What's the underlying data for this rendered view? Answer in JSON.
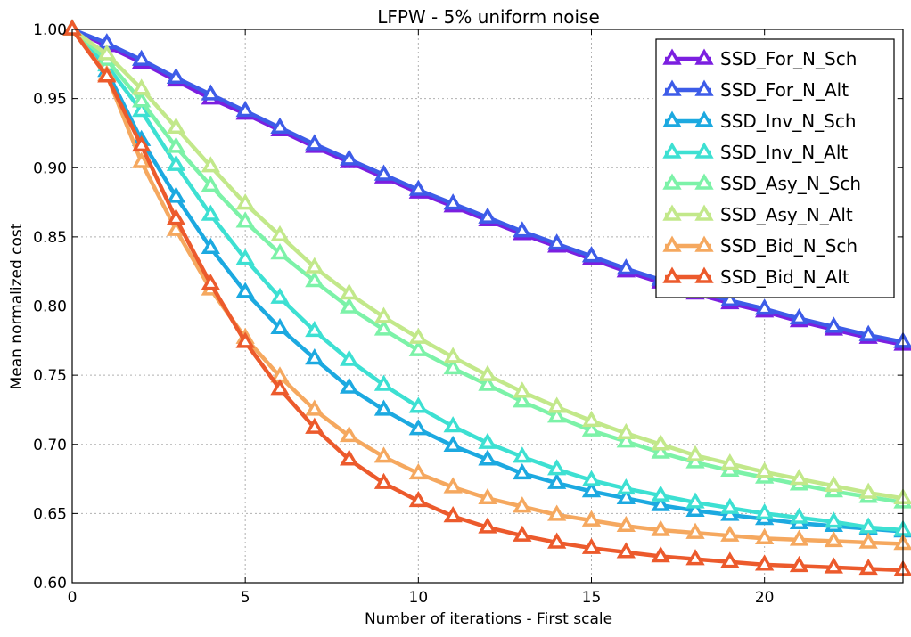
{
  "chart_data": {
    "type": "line",
    "title": "LFPW - 5% uniform noise",
    "xlabel": "Number of iterations - First scale",
    "ylabel": "Mean normalized cost",
    "xlim": [
      0,
      24
    ],
    "ylim": [
      0.6,
      1.0
    ],
    "xticks": [
      0,
      5,
      10,
      15,
      20
    ],
    "xtick_labels": [
      "0",
      "5",
      "10",
      "15",
      "20"
    ],
    "yticks": [
      0.6,
      0.65,
      0.7,
      0.75,
      0.8,
      0.85,
      0.9,
      0.95,
      1.0
    ],
    "ytick_labels": [
      "0.60",
      "0.65",
      "0.70",
      "0.75",
      "0.80",
      "0.85",
      "0.90",
      "0.95",
      "1.00"
    ],
    "grid": true,
    "legend_position": "top-right",
    "marker": "triangle",
    "x": [
      0,
      1,
      2,
      3,
      4,
      5,
      6,
      7,
      8,
      9,
      10,
      11,
      12,
      13,
      14,
      15,
      16,
      17,
      18,
      19,
      20,
      21,
      22,
      23,
      24
    ],
    "series": [
      {
        "name": "SSD_For_N_Sch",
        "color": "#7b1fe0",
        "values": [
          1.0,
          0.988,
          0.976,
          0.963,
          0.95,
          0.939,
          0.927,
          0.915,
          0.904,
          0.893,
          0.882,
          0.872,
          0.862,
          0.852,
          0.843,
          0.834,
          0.825,
          0.817,
          0.809,
          0.802,
          0.796,
          0.789,
          0.783,
          0.777,
          0.772
        ]
      },
      {
        "name": "SSD_For_N_Alt",
        "color": "#3d5ce8",
        "values": [
          1.0,
          0.99,
          0.978,
          0.965,
          0.953,
          0.941,
          0.929,
          0.917,
          0.906,
          0.895,
          0.884,
          0.874,
          0.864,
          0.854,
          0.845,
          0.836,
          0.827,
          0.819,
          0.811,
          0.804,
          0.798,
          0.791,
          0.785,
          0.779,
          0.774
        ]
      },
      {
        "name": "SSD_Inv_N_Sch",
        "color": "#1ca9e0",
        "values": [
          1.0,
          0.97,
          0.92,
          0.879,
          0.842,
          0.81,
          0.784,
          0.762,
          0.741,
          0.725,
          0.711,
          0.699,
          0.689,
          0.679,
          0.672,
          0.666,
          0.661,
          0.656,
          0.652,
          0.649,
          0.646,
          0.643,
          0.641,
          0.639,
          0.637
        ]
      },
      {
        "name": "SSD_Inv_N_Alt",
        "color": "#3de0d2",
        "values": [
          1.0,
          0.974,
          0.941,
          0.902,
          0.866,
          0.834,
          0.806,
          0.782,
          0.761,
          0.743,
          0.727,
          0.713,
          0.701,
          0.691,
          0.682,
          0.674,
          0.668,
          0.663,
          0.658,
          0.654,
          0.65,
          0.647,
          0.644,
          0.64,
          0.638
        ]
      },
      {
        "name": "SSD_Asy_N_Sch",
        "color": "#7cf2a8",
        "values": [
          1.0,
          0.978,
          0.948,
          0.915,
          0.887,
          0.861,
          0.838,
          0.818,
          0.799,
          0.783,
          0.768,
          0.755,
          0.743,
          0.731,
          0.72,
          0.71,
          0.702,
          0.694,
          0.687,
          0.681,
          0.676,
          0.671,
          0.666,
          0.662,
          0.658
        ]
      },
      {
        "name": "SSD_Asy_N_Alt",
        "color": "#c2e88a",
        "values": [
          1.0,
          0.982,
          0.957,
          0.929,
          0.901,
          0.874,
          0.851,
          0.828,
          0.809,
          0.792,
          0.777,
          0.763,
          0.75,
          0.738,
          0.727,
          0.717,
          0.708,
          0.7,
          0.692,
          0.686,
          0.68,
          0.675,
          0.67,
          0.665,
          0.661
        ]
      },
      {
        "name": "SSD_Bid_N_Sch",
        "color": "#f5a85f",
        "values": [
          1.0,
          0.967,
          0.904,
          0.855,
          0.812,
          0.777,
          0.749,
          0.725,
          0.706,
          0.691,
          0.679,
          0.669,
          0.661,
          0.655,
          0.649,
          0.645,
          0.641,
          0.638,
          0.636,
          0.634,
          0.632,
          0.631,
          0.63,
          0.629,
          0.628
        ]
      },
      {
        "name": "SSD_Bid_N_Alt",
        "color": "#ec5a2c",
        "values": [
          1.0,
          0.966,
          0.916,
          0.863,
          0.816,
          0.774,
          0.74,
          0.712,
          0.689,
          0.672,
          0.659,
          0.648,
          0.64,
          0.634,
          0.629,
          0.625,
          0.622,
          0.619,
          0.617,
          0.615,
          0.613,
          0.612,
          0.611,
          0.61,
          0.609
        ]
      }
    ]
  }
}
